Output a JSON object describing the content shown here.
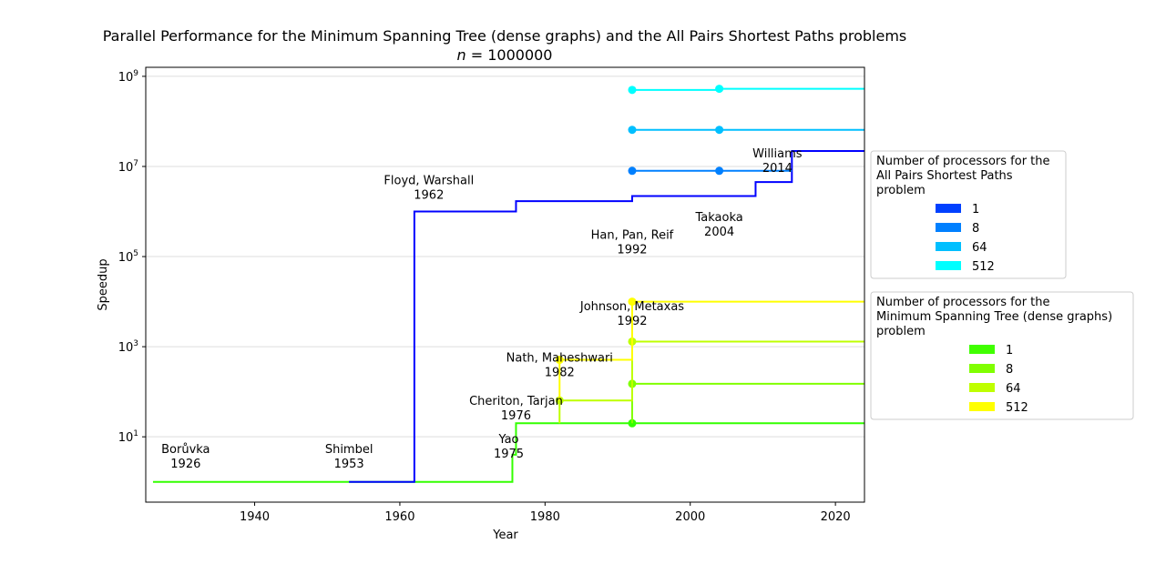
{
  "chart_data": {
    "type": "line",
    "title": "Parallel Performance for the Minimum Spanning Tree (dense graphs) and the All Pairs Shortest Paths problems",
    "subtitle": "n = 1000000",
    "subtitle_italic": "n",
    "subtitle_rest": " = 1000000",
    "xlabel": "Year",
    "ylabel": "Speedup",
    "xlim": [
      1925,
      2024
    ],
    "ylim_log10": [
      -0.45,
      9.2
    ],
    "y_scale": "log",
    "grid": "horizontal",
    "xticks": [
      {
        "value": 1940,
        "label": "1940"
      },
      {
        "value": 1960,
        "label": "1960"
      },
      {
        "value": 1980,
        "label": "1980"
      },
      {
        "value": 2000,
        "label": "2000"
      },
      {
        "value": 2020,
        "label": "2020"
      }
    ],
    "yticks": [
      {
        "exp": 1,
        "base": "10",
        "sup": "1"
      },
      {
        "exp": 3,
        "base": "10",
        "sup": "3"
      },
      {
        "exp": 5,
        "base": "10",
        "sup": "5"
      },
      {
        "exp": 7,
        "base": "10",
        "sup": "7"
      },
      {
        "exp": 9,
        "base": "10",
        "sup": "9"
      }
    ],
    "series": [
      {
        "group": "apsp",
        "name": "1",
        "color": "#0000ff",
        "steps": [
          [
            1953,
            1
          ],
          [
            1962,
            1000000
          ],
          [
            1976,
            1700000
          ],
          [
            1992,
            2200000
          ],
          [
            2009,
            4500000
          ],
          [
            2014,
            22000000
          ],
          [
            2024,
            22000000
          ]
        ],
        "markers": []
      },
      {
        "group": "apsp",
        "name": "8",
        "color": "#0080ff",
        "steps": [
          [
            1992,
            8000000
          ],
          [
            2004,
            8000000
          ],
          [
            2014,
            8000000
          ]
        ],
        "markers": [
          [
            1992,
            8000000
          ],
          [
            2004,
            8000000
          ]
        ]
      },
      {
        "group": "apsp",
        "name": "64",
        "color": "#00bfff",
        "steps": [
          [
            1992,
            65000000
          ],
          [
            2004,
            65000000
          ],
          [
            2024,
            65000000
          ]
        ],
        "markers": [
          [
            1992,
            65000000
          ],
          [
            2004,
            65000000
          ]
        ]
      },
      {
        "group": "apsp",
        "name": "512",
        "color": "#00ffff",
        "steps": [
          [
            1992,
            500000000
          ],
          [
            2004,
            530000000
          ],
          [
            2024,
            530000000
          ]
        ],
        "markers": [
          [
            1992,
            500000000
          ],
          [
            2004,
            530000000
          ]
        ]
      },
      {
        "group": "mst",
        "name": "1",
        "color": "#33ff00",
        "steps": [
          [
            1926,
            1
          ],
          [
            1975,
            1
          ],
          [
            1975.5,
            4
          ],
          [
            1976,
            20
          ],
          [
            2024,
            20
          ]
        ],
        "markers": [
          [
            1992,
            20
          ]
        ]
      },
      {
        "group": "mst",
        "name": "8",
        "color": "#80ff00",
        "steps": [
          [
            1992,
            20
          ],
          [
            1992,
            150
          ],
          [
            2024,
            150
          ]
        ],
        "markers": [
          [
            1992,
            150
          ]
        ]
      },
      {
        "group": "mst",
        "name": "64",
        "color": "#bfff00",
        "steps": [
          [
            1982,
            20
          ],
          [
            1982,
            64
          ],
          [
            1992,
            64
          ],
          [
            1992,
            1300
          ],
          [
            2024,
            1300
          ]
        ],
        "markers": [
          [
            1982,
            64
          ],
          [
            1992,
            1300
          ]
        ]
      },
      {
        "group": "mst",
        "name": "512",
        "color": "#ffff00",
        "steps": [
          [
            1982,
            64
          ],
          [
            1982,
            512
          ],
          [
            1992,
            512
          ],
          [
            1992,
            10000
          ],
          [
            2024,
            10000
          ]
        ],
        "markers": [
          [
            1982,
            512
          ],
          [
            1992,
            10000
          ]
        ]
      }
    ],
    "annotations": [
      {
        "name": "Borůvka",
        "year_label": "1926",
        "x": 1930.5,
        "y": 3
      },
      {
        "name": "Shimbel",
        "year_label": "1953",
        "x": 1953,
        "y": 3
      },
      {
        "name": "Floyd, Warshall",
        "year_label": "1962",
        "x": 1964,
        "y": 2800000
      },
      {
        "name": "Cheriton, Tarjan",
        "year_label": "1976",
        "x": 1976,
        "y": 35
      },
      {
        "name": "Yao",
        "year_label": "1975",
        "x": 1975,
        "y": 5
      },
      {
        "name": "Nath, Maheshwari",
        "year_label": "1982",
        "x": 1982,
        "y": 320
      },
      {
        "name": "Johnson, Metaxas",
        "year_label": "1992",
        "x": 1992,
        "y": 4500
      },
      {
        "name": "Han, Pan, Reif",
        "year_label": "1992",
        "x": 1992,
        "y": 170000
      },
      {
        "name": "Takaoka",
        "year_label": "2004",
        "x": 2004,
        "y": 420000
      },
      {
        "name": "Williams",
        "year_label": "2014",
        "x": 2012,
        "y": 11000000
      }
    ],
    "legends": [
      {
        "title_lines": [
          "Number of processors for the",
          "All Pairs Shortest Paths",
          "problem"
        ],
        "group": "apsp",
        "entries": [
          {
            "label": "1",
            "color": "#0040ff"
          },
          {
            "label": "8",
            "color": "#0080ff"
          },
          {
            "label": "64",
            "color": "#00bfff"
          },
          {
            "label": "512",
            "color": "#00ffff"
          }
        ],
        "placement": "right-upper"
      },
      {
        "title_lines": [
          "Number of processors for the",
          "Minimum Spanning Tree (dense graphs)",
          "problem"
        ],
        "group": "mst",
        "entries": [
          {
            "label": "1",
            "color": "#40ff00"
          },
          {
            "label": "8",
            "color": "#80ff00"
          },
          {
            "label": "64",
            "color": "#bfff00"
          },
          {
            "label": "512",
            "color": "#ffff00"
          }
        ],
        "placement": "right-lower"
      }
    ]
  }
}
